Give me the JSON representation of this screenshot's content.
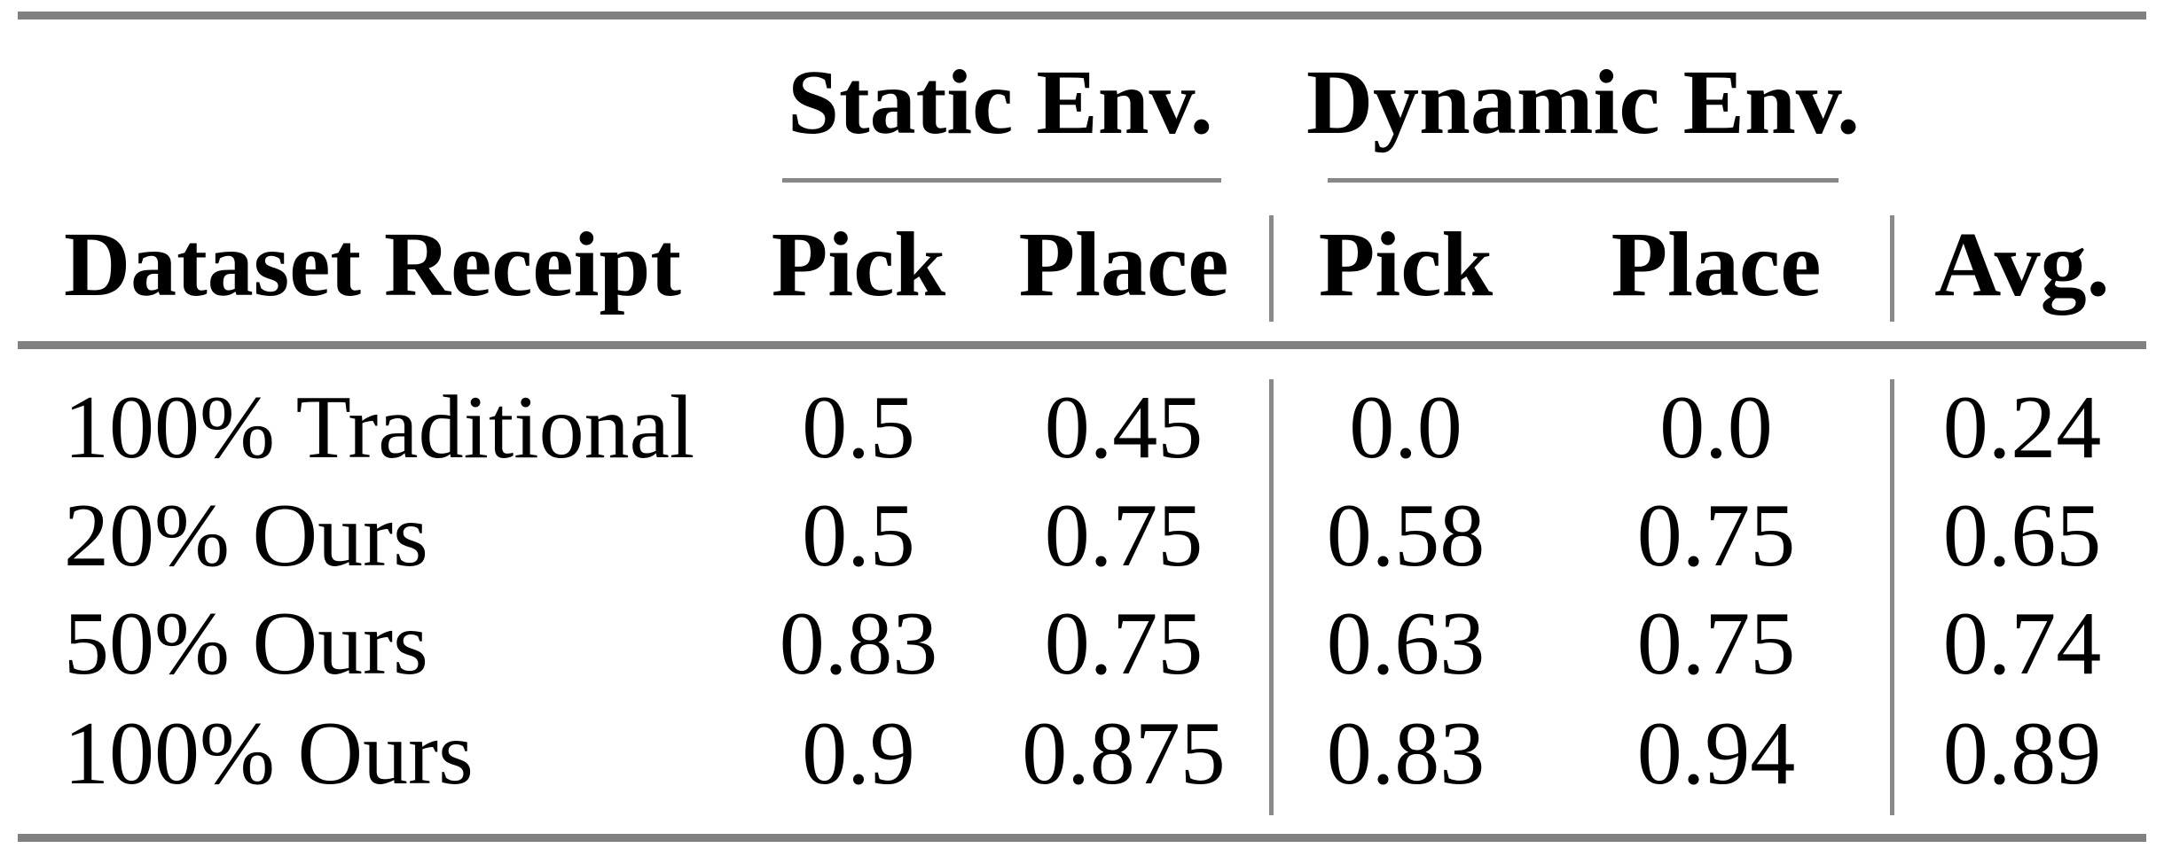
{
  "table": {
    "groups": [
      {
        "label": "Static Env."
      },
      {
        "label": "Dynamic Env."
      }
    ],
    "columns": [
      "Dataset Receipt",
      "Pick",
      "Place",
      "Pick",
      "Place",
      "Avg."
    ],
    "rows": [
      {
        "cells": [
          "100% Traditional",
          "0.5",
          "0.45",
          "0.0",
          "0.0",
          "0.24"
        ]
      },
      {
        "cells": [
          "20% Ours",
          "0.5",
          "0.75",
          "0.58",
          "0.75",
          "0.65"
        ]
      },
      {
        "cells": [
          "50% Ours",
          "0.83",
          "0.75",
          "0.63",
          "0.75",
          "0.74"
        ]
      },
      {
        "cells": [
          "100% Ours",
          "0.9",
          "0.875",
          "0.83",
          "0.94",
          "0.89"
        ]
      }
    ],
    "colors": {
      "rule_gray": "#808080",
      "cmidrule_gray": "#888888",
      "vrule_gray": "#8a8a8a",
      "text": "#000000",
      "background": "#ffffff"
    }
  },
  "chart_data": {
    "type": "table",
    "row_header": "Dataset Receipt",
    "column_groups": [
      {
        "label": "Static Env.",
        "columns": [
          "Pick",
          "Place"
        ]
      },
      {
        "label": "Dynamic Env.",
        "columns": [
          "Pick",
          "Place"
        ]
      },
      {
        "label": "",
        "columns": [
          "Avg."
        ]
      }
    ],
    "rows": [
      {
        "dataset_receipt": "100% Traditional",
        "static_pick": 0.5,
        "static_place": 0.45,
        "dynamic_pick": 0.0,
        "dynamic_place": 0.0,
        "avg": 0.24
      },
      {
        "dataset_receipt": "20% Ours",
        "static_pick": 0.5,
        "static_place": 0.75,
        "dynamic_pick": 0.58,
        "dynamic_place": 0.75,
        "avg": 0.65
      },
      {
        "dataset_receipt": "50% Ours",
        "static_pick": 0.83,
        "static_place": 0.75,
        "dynamic_pick": 0.63,
        "dynamic_place": 0.75,
        "avg": 0.74
      },
      {
        "dataset_receipt": "100% Ours",
        "static_pick": 0.9,
        "static_place": 0.875,
        "dynamic_pick": 0.83,
        "dynamic_place": 0.94,
        "avg": 0.89
      }
    ]
  }
}
